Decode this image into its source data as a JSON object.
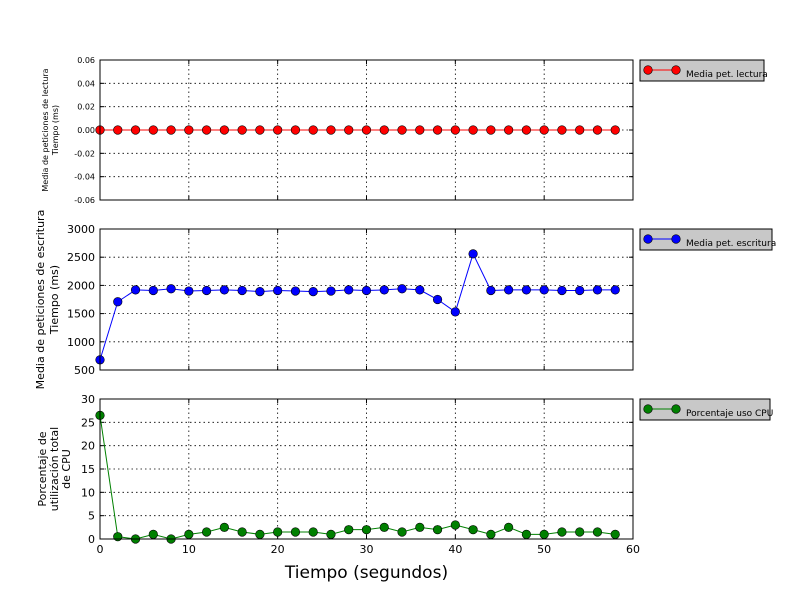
{
  "chart_data": [
    {
      "type": "line",
      "ylabel_lines": [
        "Media de peticiones de lectura",
        "Tiempo (ms)"
      ],
      "ylim": [
        -0.06,
        0.06
      ],
      "yticks": [
        "-0.06",
        "-0.04",
        "-0.02",
        "0.00",
        "0.02",
        "0.04",
        "0.06"
      ],
      "xlim": [
        0,
        60
      ],
      "grid": true,
      "legend_position": "outside-right",
      "series": [
        {
          "name": "Media pet. lectura",
          "color": "#ff0000",
          "x": [
            0,
            2,
            4,
            6,
            8,
            10,
            12,
            14,
            16,
            18,
            20,
            22,
            24,
            26,
            28,
            30,
            32,
            34,
            36,
            38,
            40,
            42,
            44,
            46,
            48,
            50,
            52,
            54,
            56,
            58
          ],
          "values": [
            0,
            0,
            0,
            0,
            0,
            0,
            0,
            0,
            0,
            0,
            0,
            0,
            0,
            0,
            0,
            0,
            0,
            0,
            0,
            0,
            0,
            0,
            0,
            0,
            0,
            0,
            0,
            0,
            0,
            0
          ]
        }
      ]
    },
    {
      "type": "line",
      "ylabel_lines": [
        "Media de peticiones de escritura",
        "Tiempo (ms)"
      ],
      "ylim": [
        500,
        3000
      ],
      "yticks": [
        "500",
        "1000",
        "1500",
        "2000",
        "2500",
        "3000"
      ],
      "xlim": [
        0,
        60
      ],
      "grid": true,
      "legend_position": "outside-right",
      "series": [
        {
          "name": "Media pet. escritura",
          "color": "#0000ff",
          "x": [
            0,
            2,
            4,
            6,
            8,
            10,
            12,
            14,
            16,
            18,
            20,
            22,
            24,
            26,
            28,
            30,
            32,
            34,
            36,
            38,
            40,
            42,
            44,
            46,
            48,
            50,
            52,
            54,
            56,
            58
          ],
          "values": [
            680,
            1710,
            1920,
            1910,
            1940,
            1900,
            1910,
            1920,
            1910,
            1890,
            1910,
            1900,
            1890,
            1900,
            1920,
            1910,
            1920,
            1940,
            1920,
            1750,
            1530,
            2560,
            1910,
            1920,
            1920,
            1920,
            1910,
            1910,
            1920,
            1920
          ]
        }
      ]
    },
    {
      "type": "line",
      "ylabel_lines": [
        "Porcentaje de",
        "utilización total",
        "de CPU"
      ],
      "ylim": [
        0,
        30
      ],
      "yticks": [
        "0",
        "5",
        "10",
        "15",
        "20",
        "25",
        "30"
      ],
      "xlim": [
        0,
        60
      ],
      "xticks": [
        "0",
        "10",
        "20",
        "30",
        "40",
        "50",
        "60"
      ],
      "xlabel": "Tiempo (segundos)",
      "grid": true,
      "legend_position": "outside-right",
      "series": [
        {
          "name": "Porcentaje uso CPU",
          "color": "#008000",
          "x": [
            0,
            2,
            4,
            6,
            8,
            10,
            12,
            14,
            16,
            18,
            20,
            22,
            24,
            26,
            28,
            30,
            32,
            34,
            36,
            38,
            40,
            42,
            44,
            46,
            48,
            50,
            52,
            54,
            56,
            58
          ],
          "values": [
            26.5,
            0.5,
            0,
            1,
            0,
            1,
            1.5,
            2.5,
            1.5,
            1,
            1.5,
            1.5,
            1.5,
            1,
            2,
            2,
            2.5,
            1.5,
            2.5,
            2,
            3,
            2,
            1,
            2.5,
            1,
            1,
            1.5,
            1.5,
            1.5,
            1
          ]
        }
      ]
    }
  ]
}
